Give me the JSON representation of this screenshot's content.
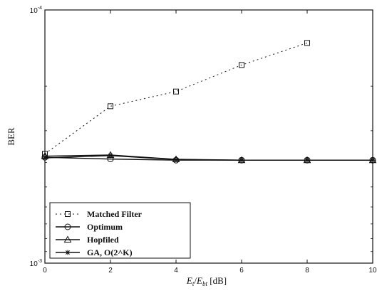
{
  "chart_data": {
    "type": "line",
    "title": "",
    "xlabel": "E_t / E_bt [dB]",
    "xlabel_parts": {
      "e1": "E",
      "sub1": "t",
      "slash": "/",
      "e2": "E",
      "sub2": "bt",
      "unit": " [dB]"
    },
    "ylabel": "BER",
    "xlim": [
      0,
      10
    ],
    "ylim": [
      0.001,
      0.0001
    ],
    "y_scale": "log",
    "x_ticks": [
      "0",
      "2",
      "4",
      "6",
      "8",
      "10"
    ],
    "y_ticks": [
      {
        "mantissa": "10",
        "exp": "-4",
        "value": 0.0001
      },
      {
        "mantissa": "10",
        "exp": "-3",
        "value": 0.001
      }
    ],
    "legend_position": "lower-left",
    "grid": false,
    "series": [
      {
        "name": "Matched Filter",
        "marker": "square",
        "dash": "2,4",
        "x": [
          0,
          2,
          4,
          6,
          8
        ],
        "y": [
          0.00037,
          0.00024,
          0.00021,
          0.000165,
          0.000135
        ]
      },
      {
        "name": "Optimum",
        "marker": "circle",
        "dash": "",
        "x": [
          0,
          2,
          4,
          6,
          8,
          10
        ],
        "y": [
          0.000382,
          0.000388,
          0.000392,
          0.000392,
          0.000392,
          0.000392
        ]
      },
      {
        "name": "Hopfiled",
        "marker": "triangle",
        "dash": "",
        "x": [
          0,
          2,
          4,
          6,
          8,
          10
        ],
        "y": [
          0.000378,
          0.000374,
          0.000389,
          0.000392,
          0.000392,
          0.000392
        ]
      },
      {
        "name": "GA, O(2^K)",
        "marker": "star",
        "dash": "",
        "x": [
          0,
          2,
          4,
          6,
          8,
          10
        ],
        "y": [
          0.000384,
          0.000376,
          0.00039,
          0.000392,
          0.000392,
          0.000392
        ]
      }
    ]
  }
}
